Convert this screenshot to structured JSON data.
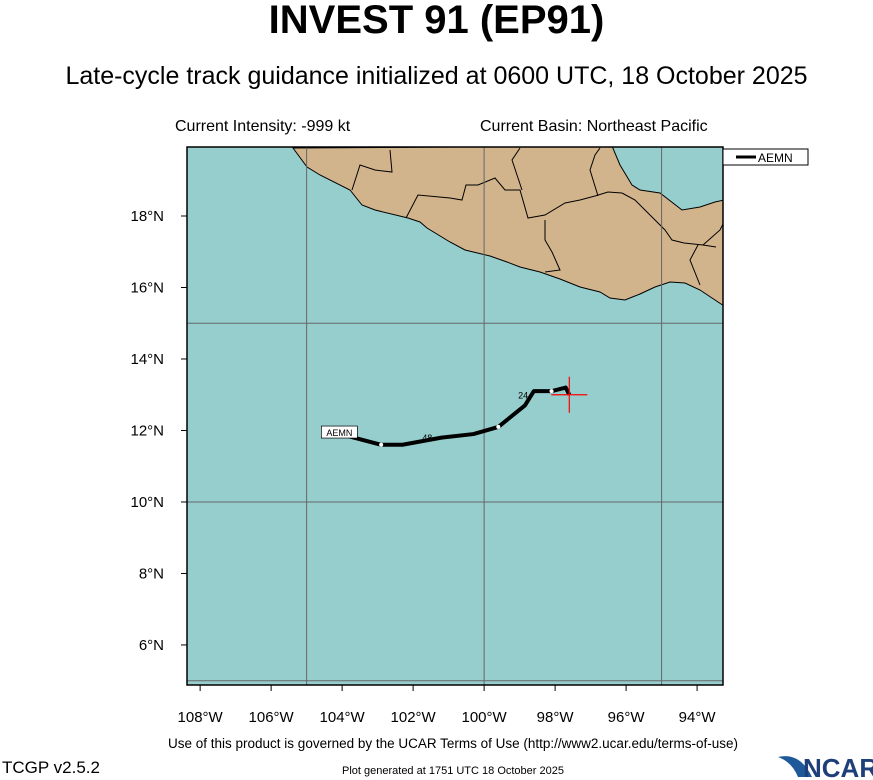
{
  "header": {
    "title": "INVEST 91 (EP91)",
    "subtitle": "Late-cycle track guidance initialized at 0600 UTC, 18 October 2025",
    "intensity": "Current Intensity: -999 kt",
    "basin": "Current Basin: Northeast Pacific"
  },
  "footer": {
    "terms": "Use of this product is governed by the UCAR Terms of Use (http://www2.ucar.edu/terms-of-use)",
    "version": "TCGP v2.5.2",
    "generated": "Plot generated at 1751 UTC   18 October 2025",
    "logo": "NCAR"
  },
  "colors": {
    "ocean": "#96cecd",
    "land": "#d2b48c",
    "track": "#000000",
    "current_position": "#ff0000"
  },
  "chart_data": {
    "type": "map-track",
    "xlim": [
      -108.37,
      -93.27
    ],
    "ylim": [
      4.88,
      19.93
    ],
    "x_ticks": [
      "108°W",
      "106°W",
      "104°W",
      "102°W",
      "100°W",
      "98°W",
      "96°W",
      "94°W"
    ],
    "x_tick_values": [
      -108,
      -106,
      -104,
      -102,
      -100,
      -98,
      -96,
      -94
    ],
    "y_ticks": [
      "6°N",
      "8°N",
      "10°N",
      "12°N",
      "14°N",
      "16°N",
      "18°N"
    ],
    "y_tick_values": [
      6,
      8,
      10,
      12,
      14,
      16,
      18
    ],
    "grid_lon": [
      -105,
      -100,
      -95
    ],
    "grid_lat": [
      5,
      10,
      15
    ],
    "legend": {
      "position": "top-right",
      "entries": [
        "AEMN"
      ]
    },
    "current_position": {
      "lon": -97.6,
      "lat": 13.0
    },
    "series": [
      {
        "name": "AEMN",
        "lon": [
          -97.6,
          -97.7,
          -98.1,
          -98.6,
          -98.85,
          -99.6,
          -100.3,
          -101.2,
          -102.3,
          -102.9,
          -104.05
        ],
        "lat": [
          13.0,
          13.2,
          13.1,
          13.1,
          12.7,
          12.1,
          11.9,
          11.8,
          11.6,
          11.6,
          11.9
        ]
      }
    ],
    "hour_labels": [
      {
        "text": "24",
        "lon": -98.9,
        "lat": 12.9
      },
      {
        "text": "48",
        "lon": -101.6,
        "lat": 11.7
      }
    ]
  }
}
